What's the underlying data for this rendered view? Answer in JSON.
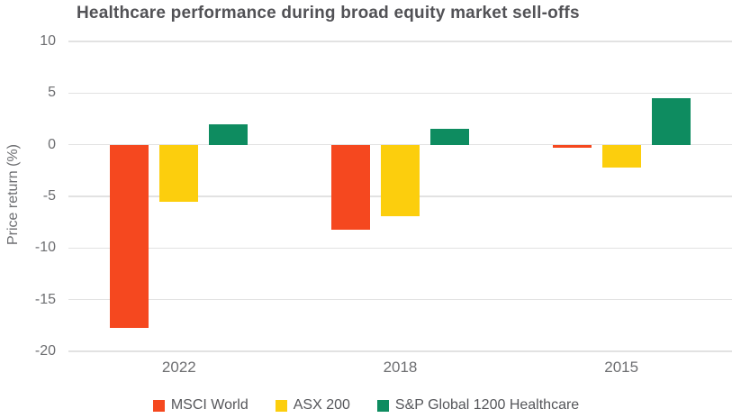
{
  "chart_data": {
    "type": "bar",
    "title": "Healthcare performance during broad equity market sell-offs",
    "ylabel": "Price return (%)",
    "xlabel": "",
    "categories": [
      "2022",
      "2018",
      "2015"
    ],
    "series": [
      {
        "name": "MSCI World",
        "color": "#F5481F",
        "values": [
          -17.7,
          -8.2,
          -0.3
        ]
      },
      {
        "name": "ASX 200",
        "color": "#FCCE0D",
        "values": [
          -5.5,
          -6.9,
          -2.2
        ]
      },
      {
        "name": "S&P Global 1200 Healthcare",
        "color": "#0E8C60",
        "values": [
          2.0,
          1.5,
          4.5
        ]
      }
    ],
    "ylim": [
      -20,
      10
    ],
    "yticks": [
      10,
      5,
      0,
      -5,
      -10,
      -15,
      -20
    ],
    "grid": true,
    "legend_position": "bottom"
  },
  "colors": {
    "background": "#FFFFFF",
    "gridline": "#E2E2E2",
    "title_text": "#525256",
    "axis_text": "#6D6E71",
    "legend_text": "#55565A"
  }
}
